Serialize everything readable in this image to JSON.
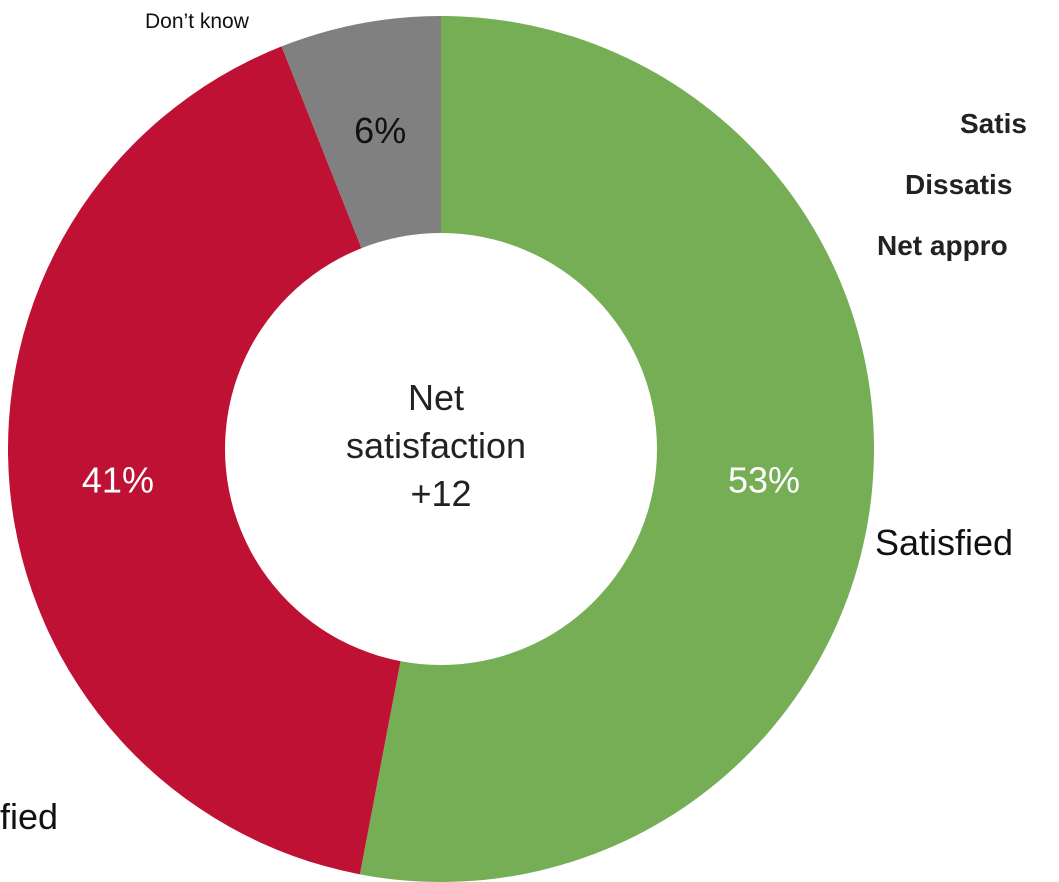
{
  "chart_data": {
    "type": "pie",
    "variant": "donut",
    "slices": [
      {
        "label": "Satisfied",
        "value": 53,
        "value_label": "53%",
        "color": "#76AE56"
      },
      {
        "label": "Dissatisfied",
        "value": 41,
        "value_label": "41%",
        "color": "#BE1133"
      },
      {
        "label": "Don’t know",
        "value": 6,
        "value_label": "6%",
        "color": "#808080"
      }
    ],
    "center_text": [
      "Net",
      "satisfaction",
      "+12"
    ],
    "outer_labels": {
      "satisfied": "Satisfied",
      "dissatisfied_fragment": "fied",
      "dont_know": "Don’t know"
    },
    "side_labels": [
      "Satis",
      "Dissatis",
      "Net appro"
    ]
  }
}
